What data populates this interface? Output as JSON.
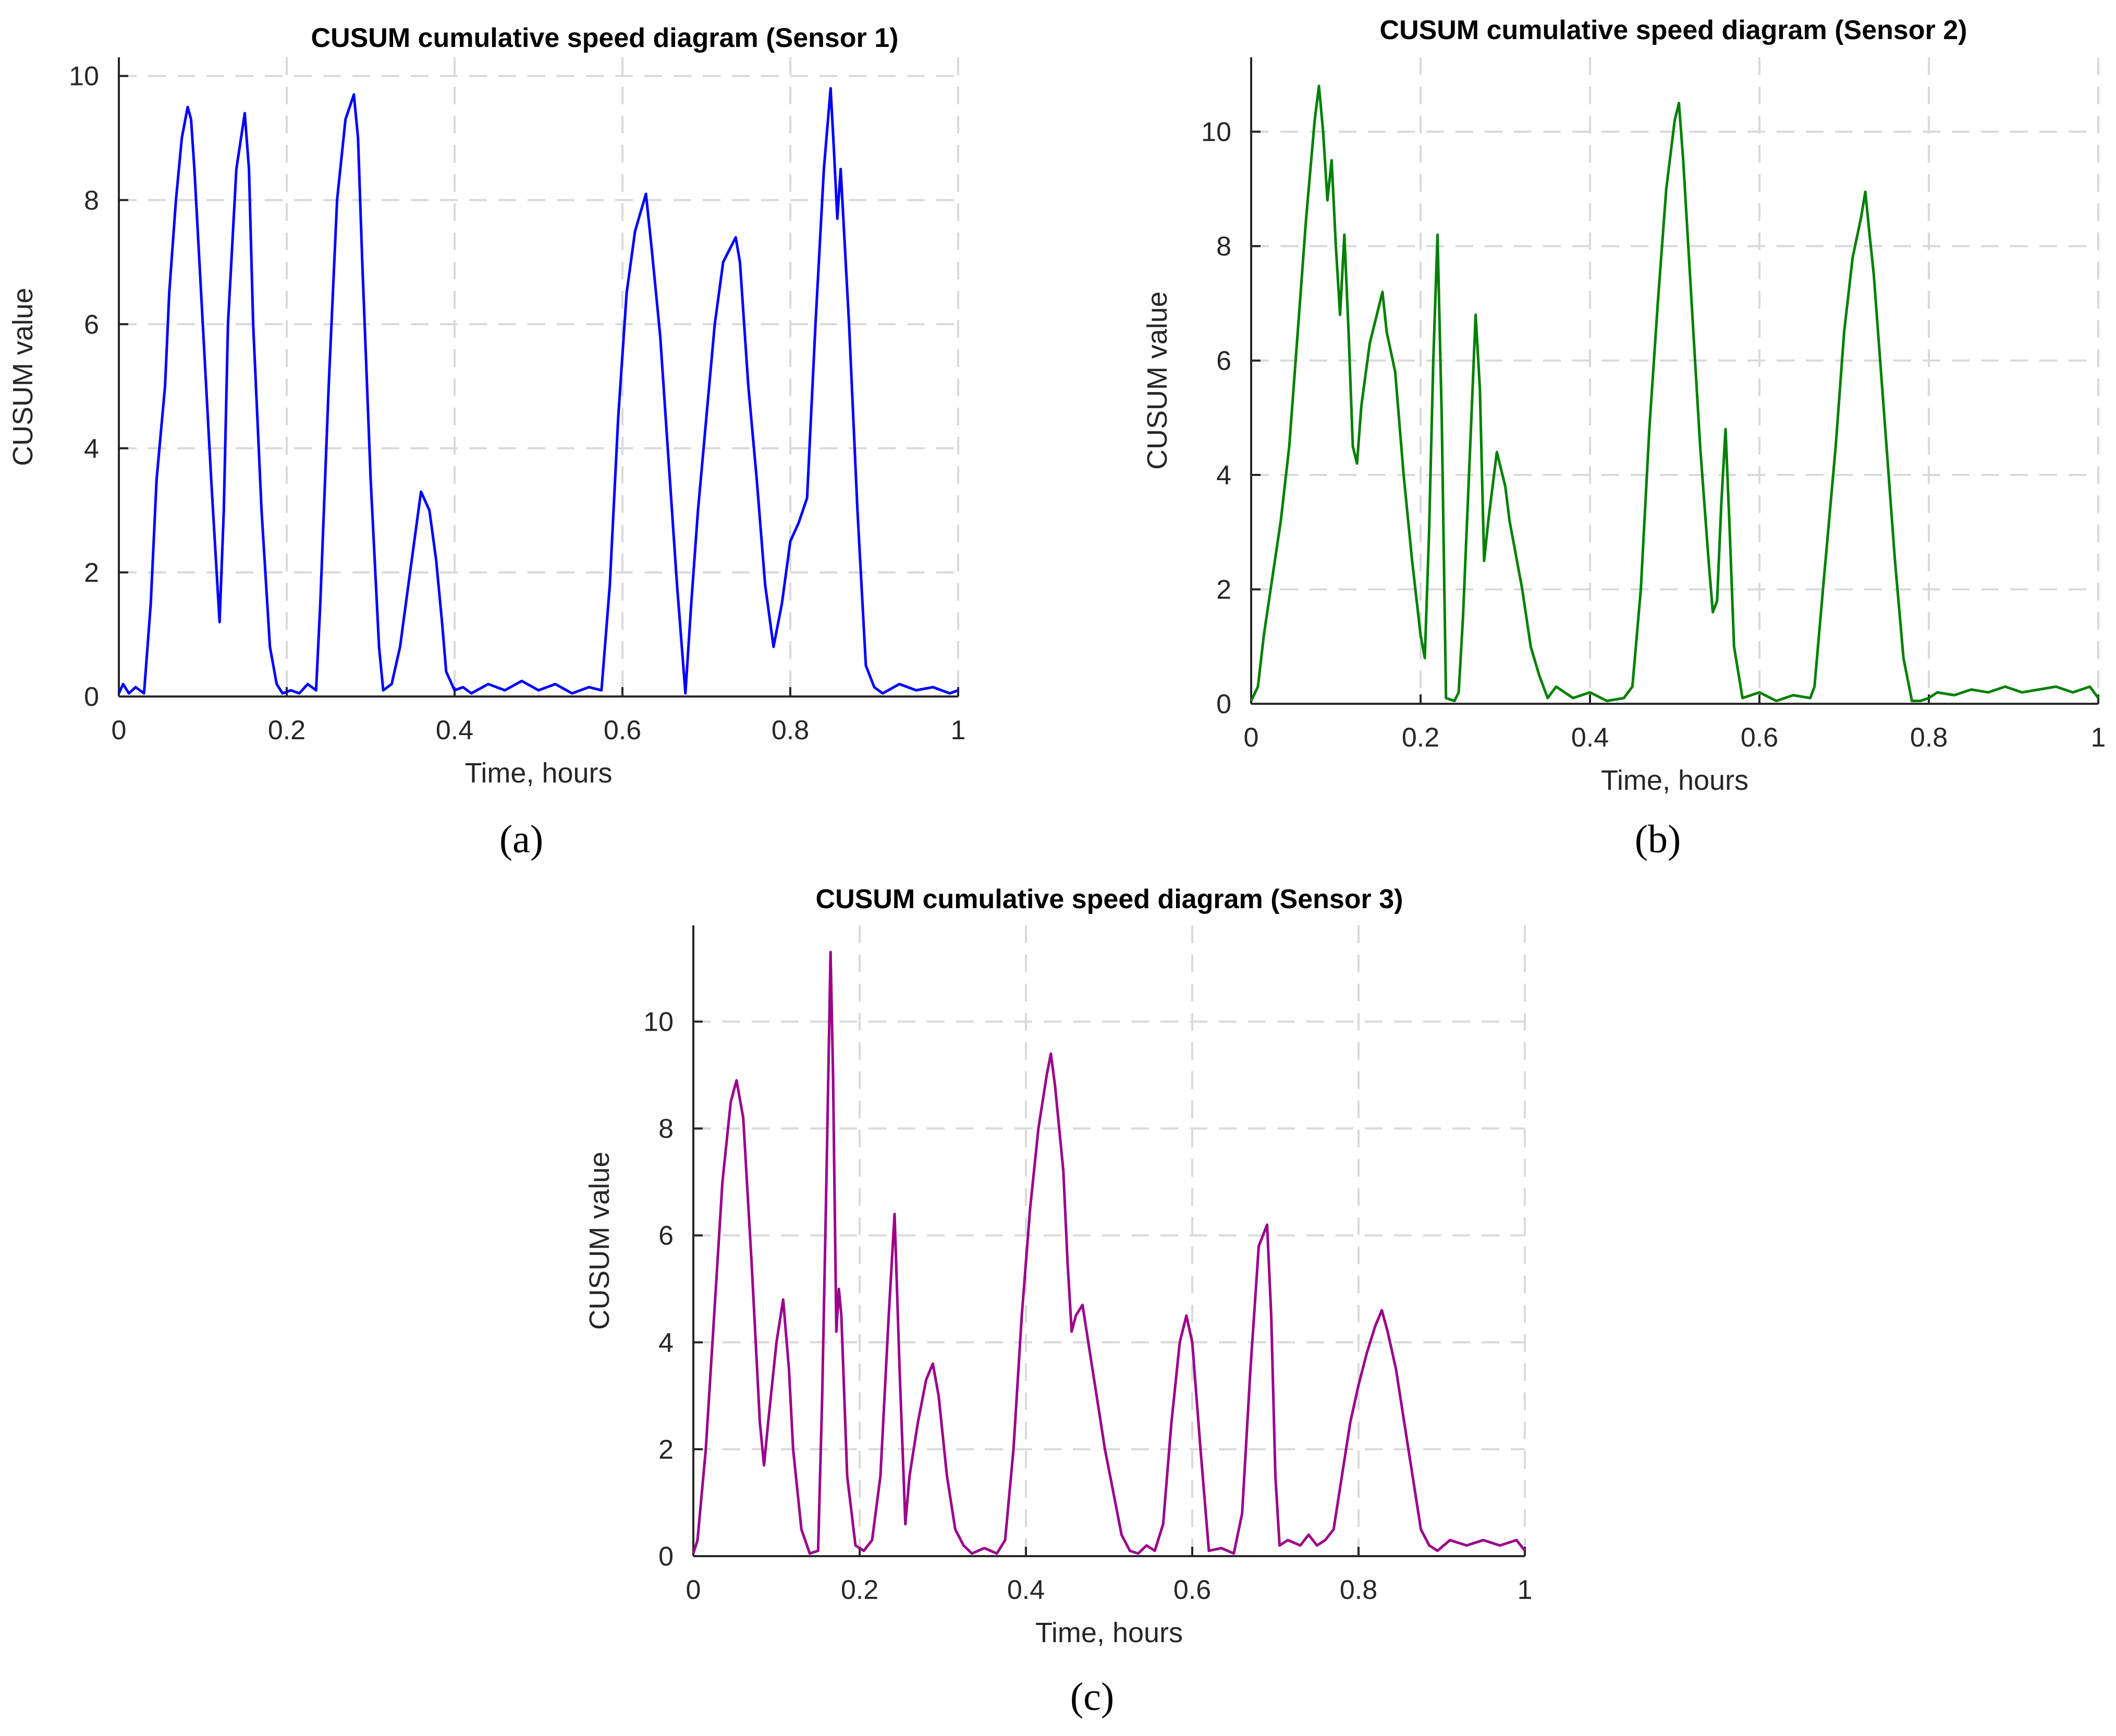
{
  "chart_data": [
    {
      "type": "line",
      "panel": "(a)",
      "title": "CUSUM cumulative speed diagram (Sensor 1)",
      "xlabel": "Time, hours",
      "ylabel": "CUSUM value",
      "xlim": [
        0,
        1
      ],
      "ylim": [
        0,
        10.3
      ],
      "xticks": [
        0,
        0.2,
        0.4,
        0.6,
        0.8,
        1
      ],
      "yticks": [
        0,
        2,
        4,
        6,
        8,
        10
      ],
      "grid": true,
      "color": "#0000ff",
      "series": [
        {
          "x": [
            0,
            0.005,
            0.012,
            0.02,
            0.03,
            0.038,
            0.045,
            0.055,
            0.06,
            0.068,
            0.075,
            0.082,
            0.086,
            0.09,
            0.1,
            0.11,
            0.12,
            0.125,
            0.13,
            0.14,
            0.15,
            0.155,
            0.16,
            0.17,
            0.18,
            0.188,
            0.195,
            0.205,
            0.215,
            0.225,
            0.235,
            0.24,
            0.25,
            0.26,
            0.27,
            0.28,
            0.285,
            0.29,
            0.3,
            0.31,
            0.315,
            0.325,
            0.335,
            0.345,
            0.355,
            0.36,
            0.37,
            0.378,
            0.385,
            0.39,
            0.4,
            0.41,
            0.42,
            0.44,
            0.46,
            0.48,
            0.5,
            0.52,
            0.54,
            0.56,
            0.575,
            0.585,
            0.595,
            0.605,
            0.615,
            0.628,
            0.635,
            0.645,
            0.655,
            0.665,
            0.675,
            0.682,
            0.69,
            0.7,
            0.71,
            0.72,
            0.735,
            0.74,
            0.75,
            0.76,
            0.77,
            0.78,
            0.79,
            0.8,
            0.81,
            0.82,
            0.83,
            0.84,
            0.848,
            0.852,
            0.856,
            0.86,
            0.87,
            0.88,
            0.89,
            0.9,
            0.91,
            0.93,
            0.95,
            0.97,
            0.99,
            1.0
          ],
          "y": [
            0.05,
            0.2,
            0.05,
            0.15,
            0.05,
            1.5,
            3.5,
            5,
            6.5,
            8,
            9,
            9.5,
            9.3,
            8.5,
            6,
            3.5,
            1.2,
            3,
            6,
            8.5,
            9.4,
            8.5,
            6,
            3,
            0.8,
            0.2,
            0.05,
            0.1,
            0.05,
            0.2,
            0.1,
            1.5,
            5,
            8,
            9.3,
            9.7,
            9,
            7,
            3.5,
            0.8,
            0.1,
            0.2,
            0.8,
            1.8,
            2.8,
            3.3,
            3,
            2.2,
            1.2,
            0.4,
            0.1,
            0.15,
            0.05,
            0.2,
            0.1,
            0.25,
            0.1,
            0.2,
            0.05,
            0.15,
            0.1,
            1.8,
            4.5,
            6.5,
            7.5,
            8.1,
            7.2,
            5.8,
            3.8,
            1.8,
            0.05,
            1.5,
            3,
            4.5,
            6,
            7,
            7.4,
            7,
            5,
            3.5,
            1.8,
            0.8,
            1.5,
            2.5,
            2.8,
            3.2,
            6,
            8.5,
            9.8,
            8.8,
            7.7,
            8.5,
            6,
            3,
            0.5,
            0.15,
            0.05,
            0.2,
            0.1,
            0.15,
            0.05,
            0.1
          ]
        }
      ]
    },
    {
      "type": "line",
      "panel": "(b)",
      "title": "CUSUM cumulative speed diagram (Sensor 2)",
      "xlabel": "Time, hours",
      "ylabel": "CUSUM value",
      "xlim": [
        0,
        1
      ],
      "ylim": [
        0,
        11.3
      ],
      "xticks": [
        0,
        0.2,
        0.4,
        0.6,
        0.8,
        1
      ],
      "yticks": [
        0,
        2,
        4,
        6,
        8,
        10
      ],
      "grid": true,
      "color": "#008000",
      "series": [
        {
          "x": [
            0,
            0.008,
            0.015,
            0.025,
            0.035,
            0.045,
            0.055,
            0.065,
            0.075,
            0.08,
            0.085,
            0.09,
            0.095,
            0.1,
            0.105,
            0.11,
            0.115,
            0.12,
            0.125,
            0.13,
            0.14,
            0.15,
            0.155,
            0.16,
            0.17,
            0.18,
            0.19,
            0.2,
            0.205,
            0.21,
            0.215,
            0.22,
            0.225,
            0.23,
            0.24,
            0.245,
            0.25,
            0.26,
            0.265,
            0.27,
            0.275,
            0.28,
            0.285,
            0.29,
            0.3,
            0.305,
            0.31,
            0.32,
            0.33,
            0.34,
            0.35,
            0.36,
            0.38,
            0.4,
            0.42,
            0.44,
            0.45,
            0.46,
            0.47,
            0.48,
            0.49,
            0.5,
            0.505,
            0.51,
            0.52,
            0.53,
            0.54,
            0.545,
            0.55,
            0.555,
            0.56,
            0.565,
            0.57,
            0.58,
            0.6,
            0.62,
            0.64,
            0.66,
            0.665,
            0.675,
            0.69,
            0.7,
            0.71,
            0.72,
            0.725,
            0.73,
            0.735,
            0.74,
            0.75,
            0.76,
            0.77,
            0.78,
            0.79,
            0.8,
            0.81,
            0.83,
            0.85,
            0.87,
            0.89,
            0.91,
            0.93,
            0.95,
            0.97,
            0.99,
            1.0
          ],
          "y": [
            0.05,
            0.3,
            1.2,
            2.2,
            3.2,
            4.5,
            6.5,
            8.5,
            10.2,
            10.8,
            10,
            8.8,
            9.5,
            8,
            6.8,
            8.2,
            6.5,
            4.5,
            4.2,
            5.2,
            6.3,
            6.9,
            7.2,
            6.5,
            5.8,
            4,
            2.5,
            1.2,
            0.8,
            3,
            6,
            8.2,
            5,
            0.1,
            0.05,
            0.2,
            1.5,
            5,
            6.8,
            5.5,
            2.5,
            3.2,
            3.8,
            4.4,
            3.8,
            3.2,
            2.8,
            2,
            1,
            0.5,
            0.1,
            0.3,
            0.1,
            0.2,
            0.05,
            0.1,
            0.3,
            2,
            4.8,
            7,
            9,
            10.2,
            10.5,
            9.5,
            7,
            4.5,
            2.5,
            1.6,
            1.8,
            3.5,
            4.8,
            3,
            1,
            0.1,
            0.2,
            0.05,
            0.15,
            0.1,
            0.3,
            2,
            4.5,
            6.5,
            7.8,
            8.5,
            8.95,
            8.2,
            7.5,
            6.5,
            4.5,
            2.5,
            0.8,
            0.05,
            0.05,
            0.1,
            0.2,
            0.15,
            0.25,
            0.2,
            0.3,
            0.2,
            0.25,
            0.3,
            0.2,
            0.3,
            0.1
          ]
        }
      ]
    },
    {
      "type": "line",
      "panel": "(c)",
      "title": "CUSUM cumulative speed diagram (Sensor 3)",
      "xlabel": "Time, hours",
      "ylabel": "CUSUM value",
      "xlim": [
        0,
        1
      ],
      "ylim": [
        0,
        11.8
      ],
      "xticks": [
        0,
        0.2,
        0.4,
        0.6,
        0.8,
        1
      ],
      "yticks": [
        0,
        2,
        4,
        6,
        8,
        10
      ],
      "grid": true,
      "color": "#9b008b",
      "series": [
        {
          "x": [
            0,
            0.005,
            0.015,
            0.025,
            0.035,
            0.045,
            0.052,
            0.06,
            0.07,
            0.08,
            0.085,
            0.09,
            0.1,
            0.108,
            0.115,
            0.12,
            0.13,
            0.14,
            0.15,
            0.155,
            0.16,
            0.165,
            0.168,
            0.172,
            0.175,
            0.178,
            0.185,
            0.195,
            0.205,
            0.215,
            0.225,
            0.235,
            0.242,
            0.248,
            0.255,
            0.26,
            0.27,
            0.28,
            0.288,
            0.295,
            0.305,
            0.315,
            0.325,
            0.335,
            0.35,
            0.365,
            0.375,
            0.385,
            0.395,
            0.405,
            0.415,
            0.425,
            0.43,
            0.435,
            0.44,
            0.445,
            0.45,
            0.455,
            0.46,
            0.468,
            0.475,
            0.485,
            0.495,
            0.505,
            0.515,
            0.525,
            0.535,
            0.545,
            0.555,
            0.565,
            0.575,
            0.585,
            0.593,
            0.6,
            0.61,
            0.62,
            0.635,
            0.65,
            0.66,
            0.67,
            0.68,
            0.69,
            0.695,
            0.7,
            0.705,
            0.715,
            0.73,
            0.74,
            0.75,
            0.76,
            0.77,
            0.78,
            0.79,
            0.8,
            0.81,
            0.82,
            0.828,
            0.835,
            0.845,
            0.855,
            0.865,
            0.875,
            0.885,
            0.895,
            0.91,
            0.93,
            0.95,
            0.97,
            0.99,
            1.0
          ],
          "y": [
            0.05,
            0.3,
            2,
            4.5,
            7,
            8.5,
            8.9,
            8.2,
            5.5,
            2.5,
            1.7,
            2.5,
            4,
            4.8,
            3.5,
            2,
            0.5,
            0.05,
            0.1,
            3,
            7,
            11.3,
            9,
            4.2,
            5,
            4.5,
            1.5,
            0.2,
            0.1,
            0.3,
            1.5,
            4.5,
            6.4,
            3.5,
            0.6,
            1.5,
            2.5,
            3.3,
            3.6,
            3,
            1.5,
            0.5,
            0.2,
            0.05,
            0.15,
            0.05,
            0.3,
            2,
            4.5,
            6.5,
            8,
            9,
            9.4,
            8.8,
            8,
            7.2,
            5.5,
            4.2,
            4.5,
            4.7,
            4,
            3,
            2,
            1.2,
            0.4,
            0.1,
            0.05,
            0.2,
            0.1,
            0.6,
            2.5,
            4,
            4.5,
            4,
            2,
            0.1,
            0.15,
            0.05,
            0.8,
            3.5,
            5.8,
            6.2,
            4.5,
            1.5,
            0.2,
            0.3,
            0.2,
            0.4,
            0.2,
            0.3,
            0.5,
            1.5,
            2.5,
            3.2,
            3.8,
            4.3,
            4.6,
            4.2,
            3.5,
            2.5,
            1.5,
            0.5,
            0.2,
            0.1,
            0.3,
            0.2,
            0.3,
            0.2,
            0.3,
            0.1
          ]
        }
      ]
    }
  ]
}
